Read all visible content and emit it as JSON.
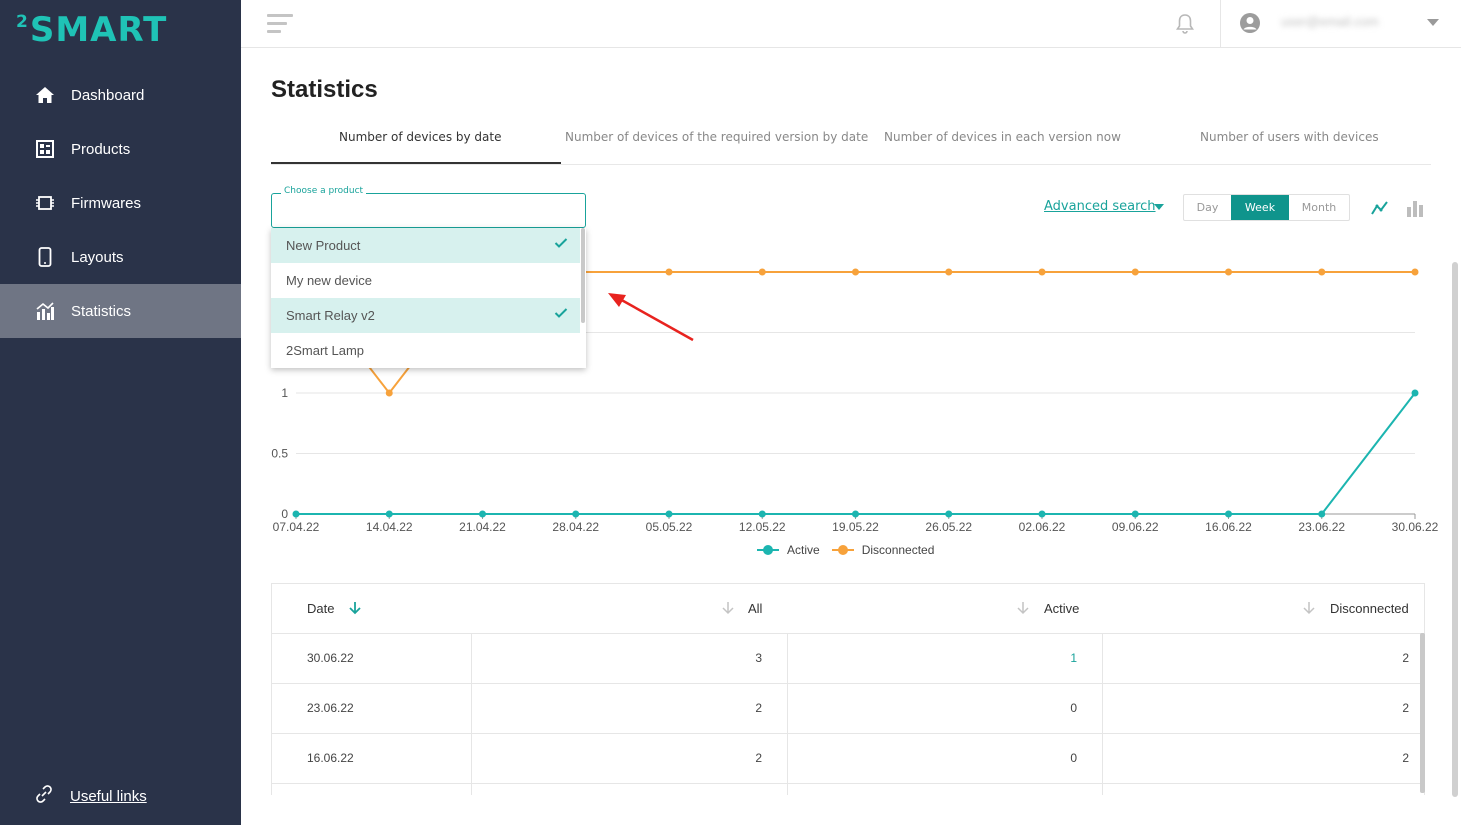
{
  "brand": {
    "logo_sup": "2",
    "logo_text": "SMART"
  },
  "sidebar": {
    "items": [
      {
        "label": "Dashboard",
        "icon": "home-icon"
      },
      {
        "label": "Products",
        "icon": "products-icon"
      },
      {
        "label": "Firmwares",
        "icon": "chip-icon"
      },
      {
        "label": "Layouts",
        "icon": "phone-icon"
      },
      {
        "label": "Statistics",
        "icon": "statistics-icon",
        "active": true
      }
    ],
    "useful_links": "Useful links"
  },
  "header": {
    "user_email": "user@email.com"
  },
  "page": {
    "title": "Statistics"
  },
  "tabs": [
    {
      "label": "Number of devices by date",
      "active": true
    },
    {
      "label": "Number of devices of the required version by date"
    },
    {
      "label": "Number of devices in each version now"
    },
    {
      "label": "Number of users with devices"
    }
  ],
  "filter": {
    "label": "Choose a product",
    "options": [
      {
        "label": "New Product",
        "selected": true
      },
      {
        "label": "My new device",
        "selected": false
      },
      {
        "label": "Smart Relay v2",
        "selected": true
      },
      {
        "label": "2Smart Lamp",
        "selected": false
      }
    ],
    "advanced_search": "Advanced search",
    "periods": [
      "Day",
      "Week",
      "Month"
    ],
    "active_period": "Week"
  },
  "colors": {
    "accent": "#19a39b",
    "active": "#1cb5b0",
    "disconnected": "#f7a23b",
    "sidebar": "#2a3349"
  },
  "chart_data": {
    "type": "line",
    "x": [
      "07.04.22",
      "14.04.22",
      "21.04.22",
      "28.04.22",
      "05.05.22",
      "12.05.22",
      "19.05.22",
      "26.05.22",
      "02.06.22",
      "09.06.22",
      "16.06.22",
      "23.06.22",
      "30.06.22"
    ],
    "y_ticks": [
      "0",
      "0.5",
      "1"
    ],
    "ylim": [
      0,
      2
    ],
    "series": [
      {
        "name": "Active",
        "color": "#1cb5b0",
        "values": [
          0,
          0,
          0,
          0,
          0,
          0,
          0,
          0,
          0,
          0,
          0,
          0,
          1
        ]
      },
      {
        "name": "Disconnected",
        "color": "#f7a23b",
        "values": [
          2,
          1,
          2,
          2,
          2,
          2,
          2,
          2,
          2,
          2,
          2,
          2,
          2
        ]
      }
    ],
    "legend": "bottom",
    "grid": true
  },
  "table": {
    "columns": [
      "Date",
      "All",
      "Active",
      "Disconnected"
    ],
    "rows": [
      {
        "date": "30.06.22",
        "all": "3",
        "active": "1",
        "disconnected": "2"
      },
      {
        "date": "23.06.22",
        "all": "2",
        "active": "0",
        "disconnected": "2"
      },
      {
        "date": "16.06.22",
        "all": "2",
        "active": "0",
        "disconnected": "2"
      }
    ]
  }
}
